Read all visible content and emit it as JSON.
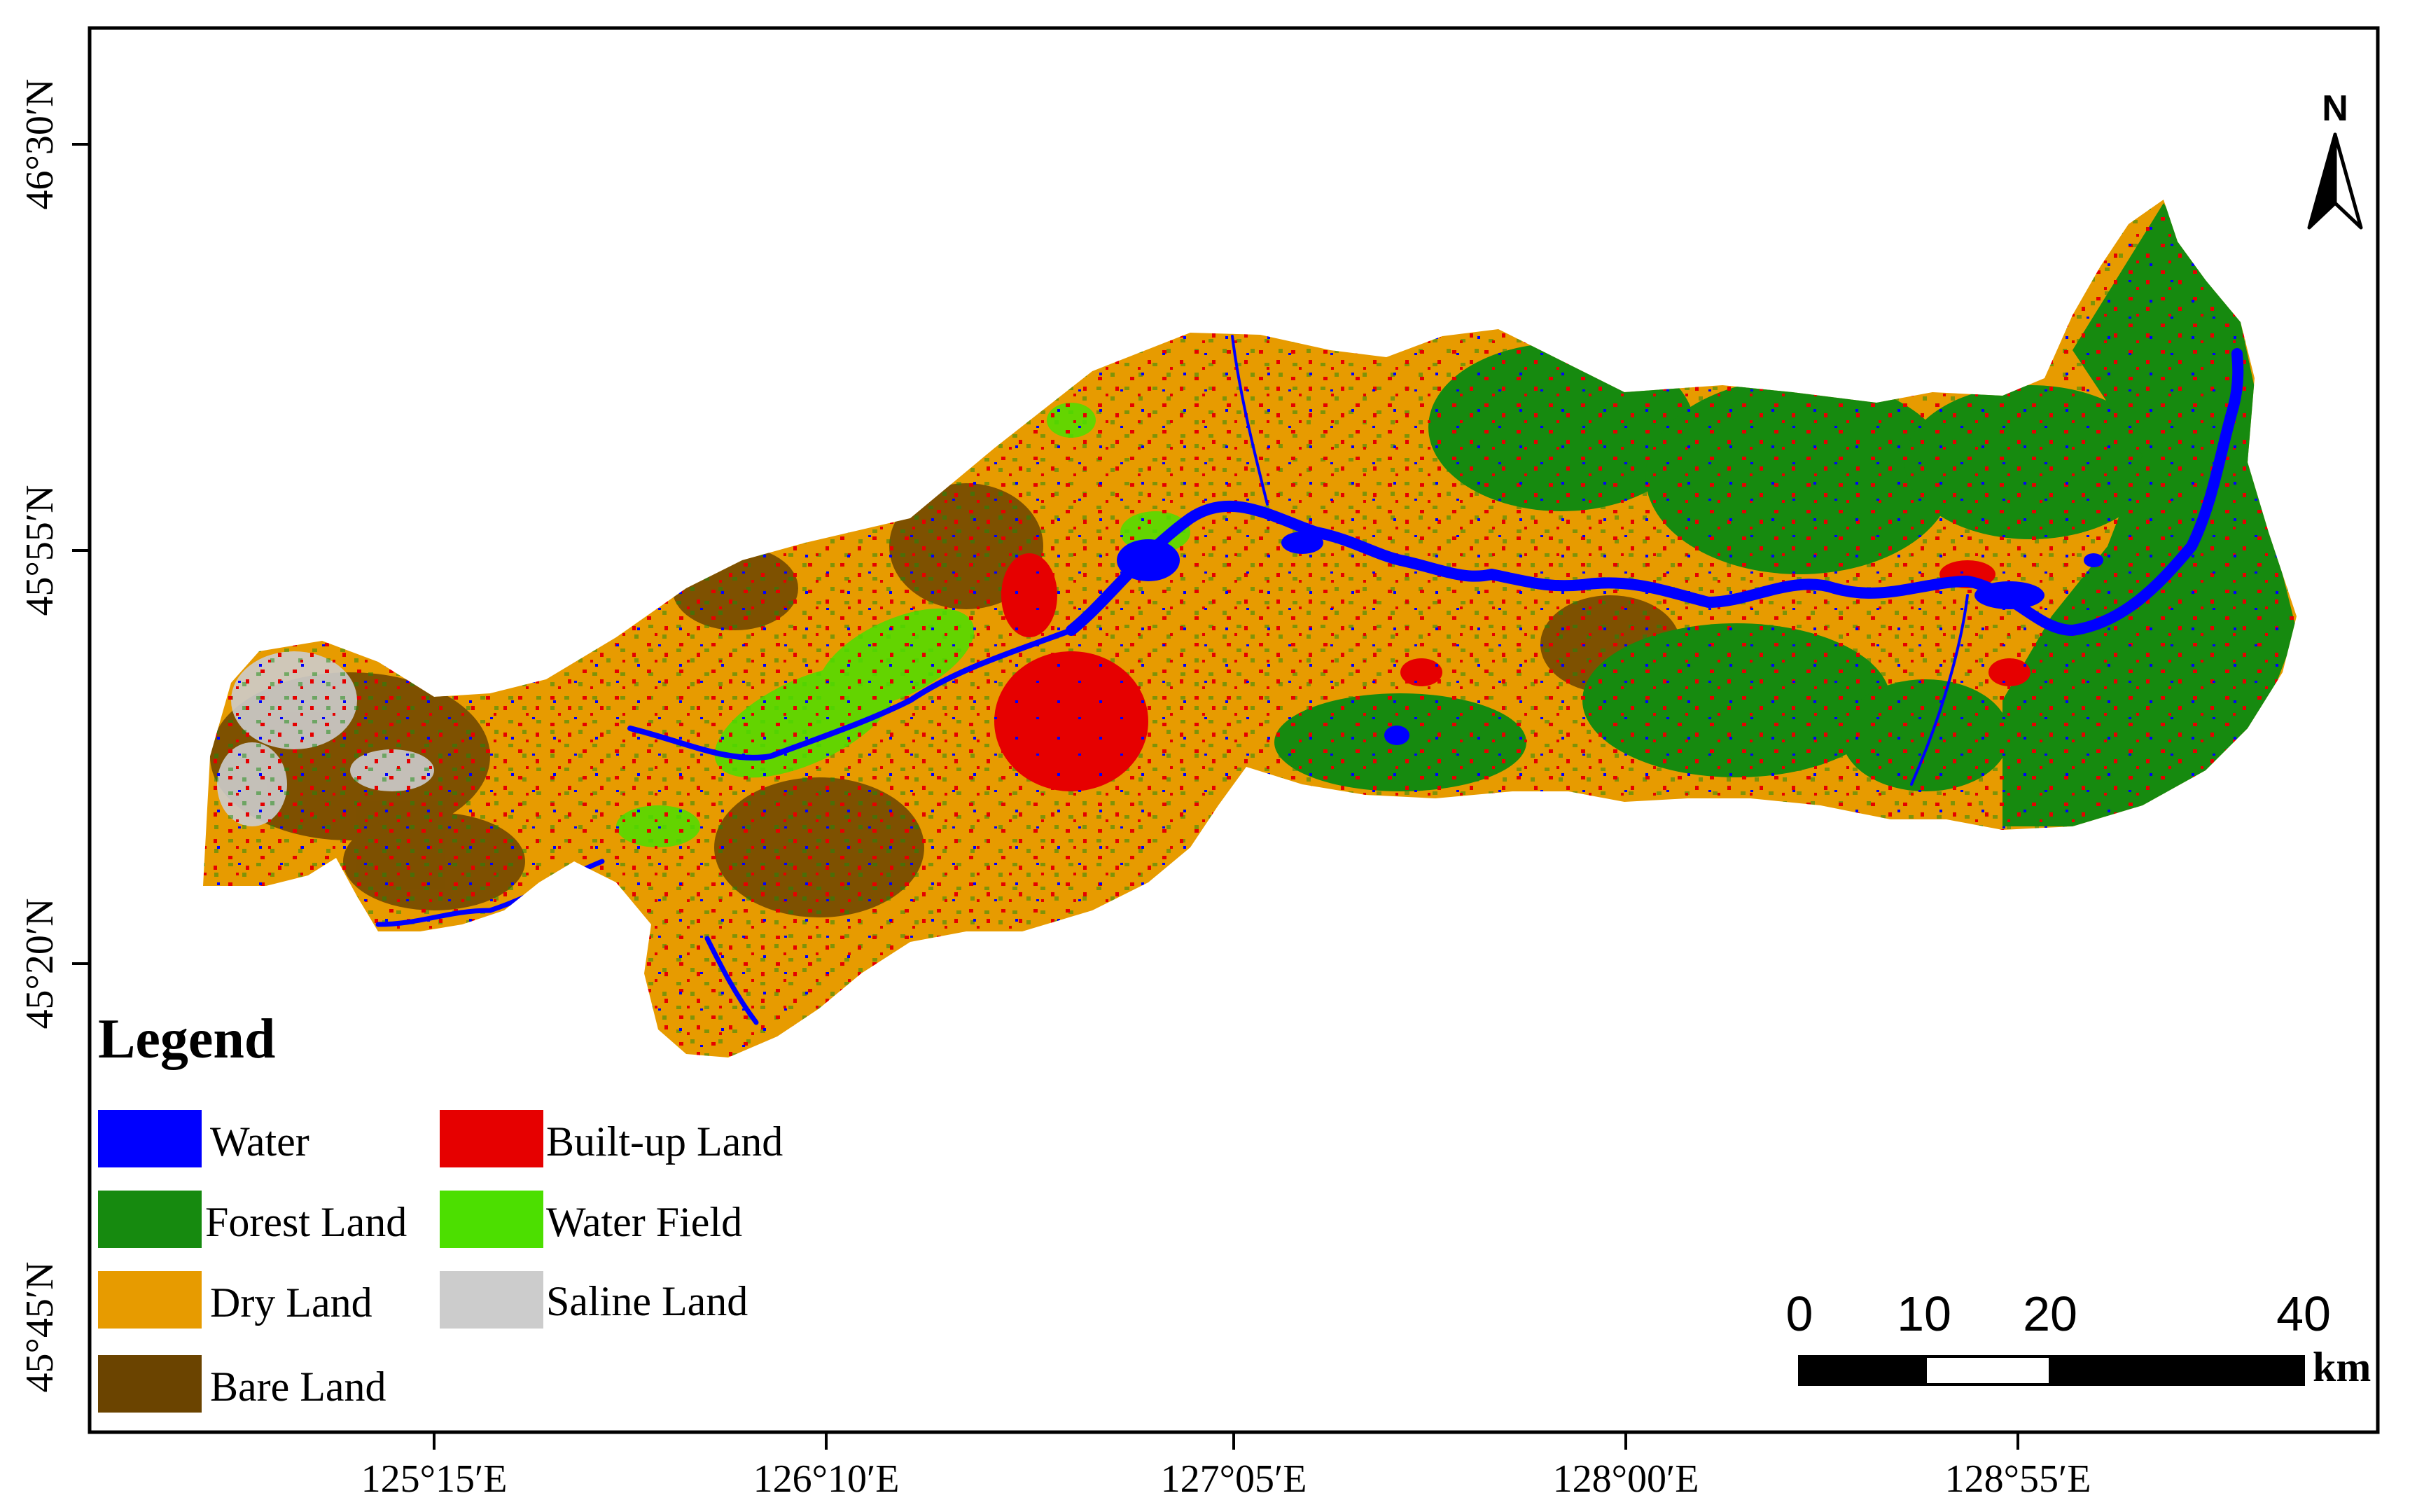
{
  "map": {
    "x_ticks": [
      "125°15′E",
      "126°10′E",
      "127°05′E",
      "128°00′E",
      "128°55′E"
    ],
    "y_ticks": [
      "46°30′N",
      "45°55′N",
      "45°20′N",
      "45°45′N"
    ],
    "north_arrow": {
      "label": "N",
      "icon": "north-arrow-icon"
    },
    "scale_bar": {
      "ticks": [
        "0",
        "10",
        "20",
        "40"
      ],
      "unit": "km"
    },
    "legend": {
      "title": "Legend",
      "items": [
        {
          "label": "Water",
          "color": "#0000ff"
        },
        {
          "label": "Forest Land",
          "color": "#168a0f"
        },
        {
          "label": "Dry Land",
          "color": "#e79b00"
        },
        {
          "label": "Bare Land",
          "color": "#6b4400"
        },
        {
          "label": "Built-up Land",
          "color": "#e60000"
        },
        {
          "label": "Water Field",
          "color": "#4cdf00"
        },
        {
          "label": "Saline Land",
          "color": "#cccccc"
        }
      ]
    }
  }
}
